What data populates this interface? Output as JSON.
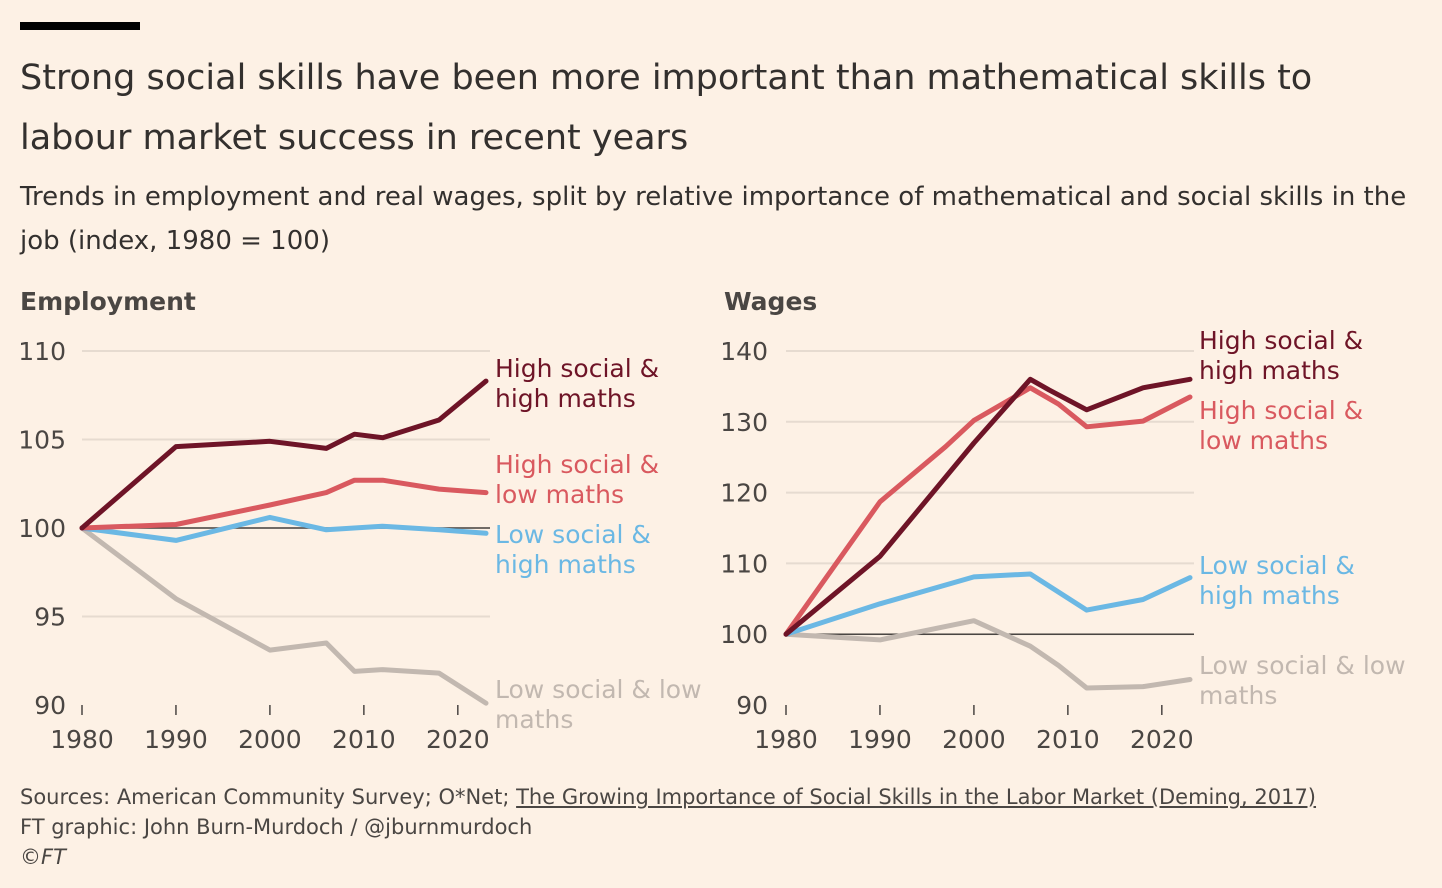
{
  "header": {
    "title": "Strong social skills have been more important than mathematical skills to labour market success in recent years",
    "subtitle": "Trends in employment and real wages, split by relative importance of mathematical and social skills in the job (index, 1980 = 100)"
  },
  "footer": {
    "sources_prefix": "Sources: American Community Survey; O*Net; ",
    "sources_link": "The Growing Importance of Social Skills in the Labor Market (Deming, 2017)",
    "credit": "FT graphic: John Burn-Murdoch / @jburnmurdoch",
    "copyright": "©FT"
  },
  "colors": {
    "background": "#fdf1e5",
    "grid": "#e6dbd0",
    "baseline": "#4a4643",
    "axis_text": "#4a4643",
    "high_social_high_maths": "#6e1427",
    "high_social_low_maths": "#d9595f",
    "low_social_high_maths": "#6bb8e4",
    "low_social_low_maths": "#c2b8b0"
  },
  "chart_data": [
    {
      "type": "line",
      "title": "Employment",
      "xlim": [
        1980,
        2023
      ],
      "ylim": [
        90,
        110
      ],
      "xticks": [
        1980,
        1990,
        2000,
        2010,
        2020
      ],
      "yticks": [
        90,
        95,
        100,
        105,
        110
      ],
      "baseline": 100,
      "series": [
        {
          "key": "hshm",
          "label_lines": [
            "High social &",
            "high maths"
          ],
          "color": "#6e1427",
          "x": [
            1980,
            1990,
            2000,
            2006,
            2009,
            2012,
            2018,
            2023
          ],
          "values": [
            100,
            104.6,
            104.9,
            104.5,
            105.3,
            105.1,
            106.1,
            108.3
          ]
        },
        {
          "key": "hslm",
          "label_lines": [
            "High social &",
            "low maths"
          ],
          "color": "#d9595f",
          "x": [
            1980,
            1990,
            2000,
            2006,
            2009,
            2012,
            2018,
            2023
          ],
          "values": [
            100,
            100.2,
            101.3,
            102,
            102.7,
            102.7,
            102.2,
            102
          ],
          "label_lines_display": null
        },
        {
          "key": "lshm",
          "label_lines": [
            "Low social &",
            "high maths"
          ],
          "color": "#6bb8e4",
          "x": [
            1980,
            1990,
            2000,
            2006,
            2012,
            2018,
            2023
          ],
          "values": [
            100,
            99.3,
            100.6,
            99.9,
            100.1,
            99.9,
            99.7
          ]
        },
        {
          "key": "lslm",
          "label_lines": [
            "Low social & low",
            "maths"
          ],
          "color": "#c2b8b0",
          "x": [
            1980,
            1990,
            2000,
            2006,
            2009,
            2012,
            2018,
            2023
          ],
          "values": [
            100,
            96,
            93.1,
            93.5,
            91.9,
            92,
            91.8,
            90.1
          ]
        }
      ]
    },
    {
      "type": "line",
      "title": "Wages",
      "xlim": [
        1980,
        2023
      ],
      "ylim": [
        90,
        140
      ],
      "xticks": [
        1980,
        1990,
        2000,
        2010,
        2020
      ],
      "yticks": [
        90,
        100,
        110,
        120,
        130,
        140
      ],
      "baseline": 100,
      "series": [
        {
          "key": "hshm",
          "label_lines": [
            "High social &",
            "high maths"
          ],
          "color": "#6e1427",
          "x": [
            1980,
            1990,
            2000,
            2006,
            2008,
            2012,
            2018,
            2023
          ],
          "values": [
            100,
            111,
            127,
            136,
            134.5,
            131.7,
            134.8,
            136
          ]
        },
        {
          "key": "hslm",
          "label_lines": [
            "High social &",
            "low maths"
          ],
          "color": "#d9595f",
          "x": [
            1980,
            1990,
            1997,
            2000,
            2006,
            2009,
            2012,
            2018,
            2023
          ],
          "values": [
            100,
            118.7,
            126.5,
            130.2,
            134.8,
            132.5,
            129.3,
            130.1,
            133.5
          ]
        },
        {
          "key": "lshm",
          "label_lines": [
            "Low social &",
            "high maths"
          ],
          "color": "#6bb8e4",
          "x": [
            1980,
            1990,
            2000,
            2006,
            2012,
            2018,
            2023
          ],
          "values": [
            100,
            104.3,
            108.1,
            108.5,
            103.4,
            104.9,
            108
          ]
        },
        {
          "key": "lslm",
          "label_lines": [
            "Low social & low",
            "maths"
          ],
          "color": "#c2b8b0",
          "x": [
            1980,
            1990,
            2000,
            2006,
            2009,
            2012,
            2018,
            2023
          ],
          "values": [
            100,
            99.2,
            101.9,
            98.3,
            95.6,
            92.4,
            92.6,
            93.6
          ]
        }
      ]
    }
  ]
}
